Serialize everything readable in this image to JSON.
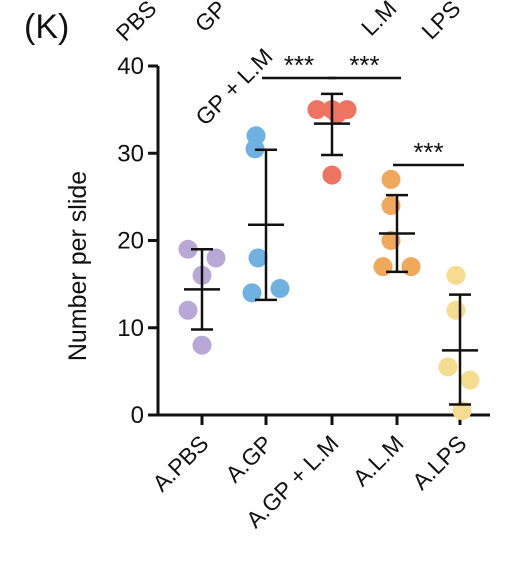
{
  "panel_label": "(K)",
  "top_cutoff_labels": [
    "PBS",
    "GP",
    "GP + L.M",
    "L.M",
    "LPS"
  ],
  "chart_data": {
    "type": "scatter",
    "title": "",
    "xlabel": "",
    "ylabel": "Number per slide",
    "ylim": [
      0,
      40
    ],
    "yticks": [
      0,
      10,
      20,
      30,
      40
    ],
    "grid": false,
    "categories": [
      "A.PBS",
      "A.GP",
      "A.GP + L.M",
      "A.L.M",
      "A.LPS"
    ],
    "groups": [
      {
        "category": "A.PBS",
        "color": "#b9a8d6",
        "points": [
          19,
          18,
          16,
          12,
          8
        ],
        "mean": 14.4,
        "sd_upper": 19.0,
        "sd_lower": 9.8
      },
      {
        "category": "A.GP",
        "color": "#6fb1e0",
        "points": [
          32,
          30.5,
          18,
          14,
          14.5
        ],
        "mean": 21.8,
        "sd_upper": 30.4,
        "sd_lower": 13.2
      },
      {
        "category": "A.GP + L.M",
        "color": "#ee7361",
        "points": [
          35,
          35,
          35,
          34.5,
          27.5
        ],
        "mean": 33.4,
        "sd_upper": 36.8,
        "sd_lower": 29.8
      },
      {
        "category": "A.L.M",
        "color": "#f0a95a",
        "points": [
          27,
          24,
          20,
          17,
          17
        ],
        "mean": 20.8,
        "sd_upper": 25.2,
        "sd_lower": 16.4
      },
      {
        "category": "A.LPS",
        "color": "#f5dc8e",
        "points": [
          16,
          12,
          5.5,
          4,
          0.5
        ],
        "mean": 7.4,
        "sd_upper": 13.8,
        "sd_lower": 1.2
      }
    ],
    "significance": [
      {
        "from": "A.GP",
        "to": "A.GP + L.M",
        "label": "***"
      },
      {
        "from": "A.GP + L.M",
        "to": "A.L.M",
        "label": "***"
      },
      {
        "from": "A.L.M",
        "to": "A.LPS",
        "label": "***"
      }
    ]
  }
}
